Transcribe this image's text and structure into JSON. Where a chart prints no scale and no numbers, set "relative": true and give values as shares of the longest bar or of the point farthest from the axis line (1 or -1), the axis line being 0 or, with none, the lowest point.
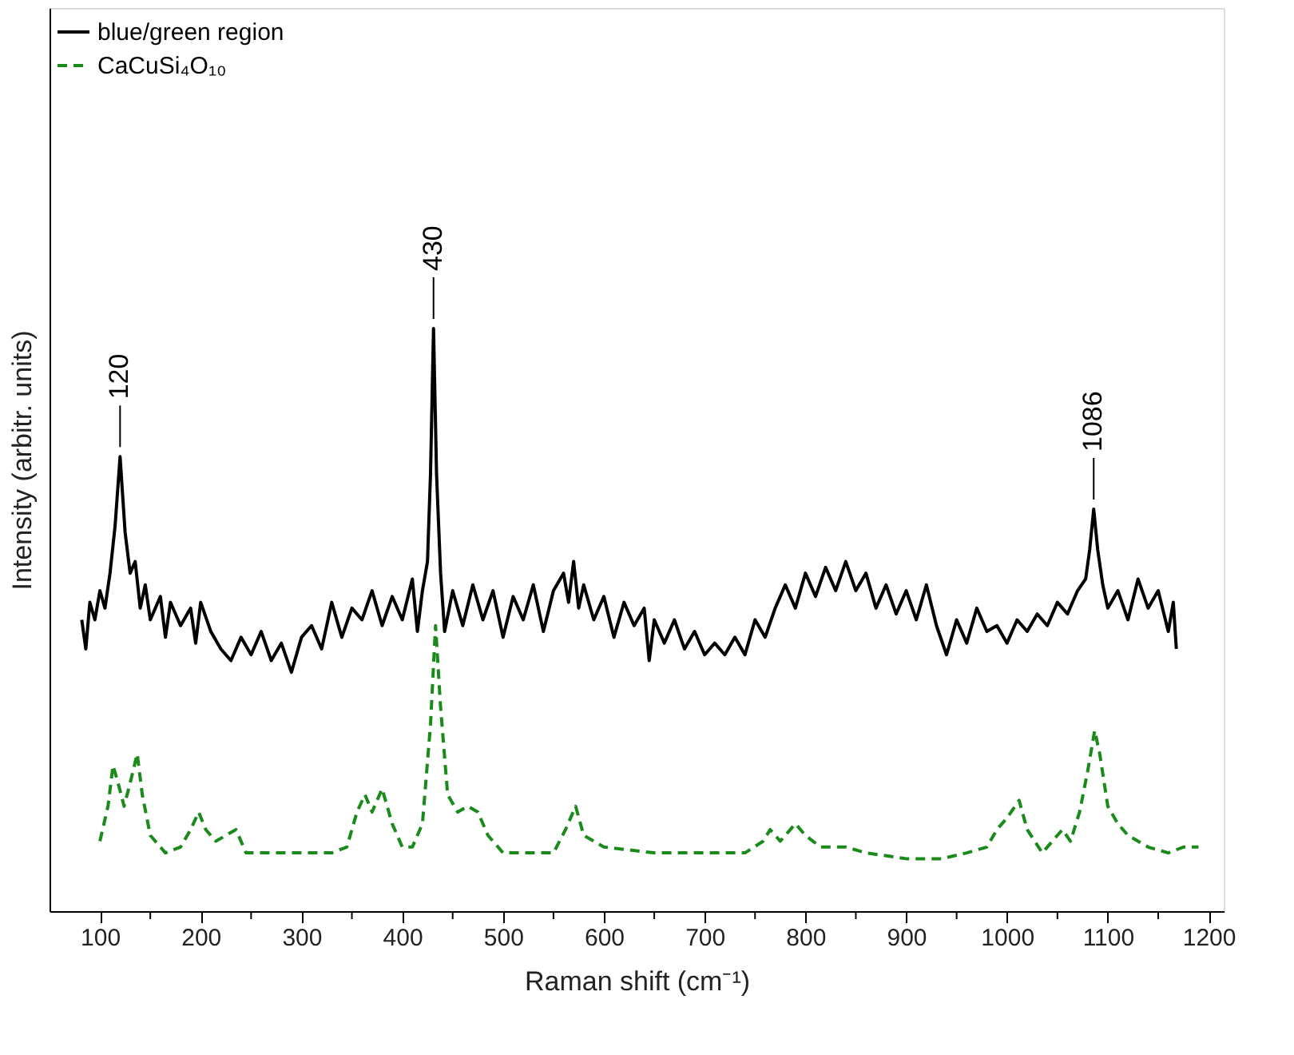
{
  "chart_data": {
    "type": "line",
    "relative": true,
    "xlabel": "Raman shift (cm⁻¹)",
    "ylabel": "Intensity (arbitr. units)",
    "legend": "top left",
    "xlim": [
      50,
      1215
    ],
    "xticks": [
      100,
      {
        "value": 150,
        "label": null
      },
      200,
      {
        "value": 250,
        "label": null
      },
      300,
      {
        "value": 350,
        "label": null
      },
      400,
      {
        "value": 450,
        "label": null
      },
      500,
      {
        "value": 550,
        "label": null
      },
      600,
      {
        "value": 650,
        "label": null
      },
      700,
      {
        "value": 750,
        "label": null
      },
      800,
      {
        "value": 850,
        "label": null
      },
      900,
      {
        "value": 950,
        "label": null
      },
      1000,
      {
        "value": 1050,
        "label": null
      },
      1100,
      {
        "value": 1150,
        "label": null
      },
      1200
    ],
    "annotations": [
      {
        "text": "120",
        "x": 120,
        "y": 0.78
      },
      {
        "text": "430",
        "x": 431,
        "y": 1.0
      },
      {
        "text": "1086",
        "x": 1086,
        "y": 0.69
      }
    ],
    "series": [
      {
        "name": "blue/green region",
        "color": "#000000",
        "line_style": "solid",
        "x": [
          82,
          86,
          90,
          95,
          100,
          105,
          110,
          115,
          120,
          125,
          130,
          135,
          140,
          145,
          150,
          160,
          165,
          170,
          180,
          190,
          195,
          200,
          210,
          220,
          230,
          240,
          250,
          260,
          270,
          280,
          290,
          300,
          310,
          320,
          330,
          340,
          350,
          360,
          370,
          380,
          390,
          400,
          410,
          415,
          420,
          425,
          428,
          431,
          434,
          438,
          442,
          450,
          460,
          470,
          480,
          490,
          500,
          510,
          520,
          530,
          540,
          550,
          560,
          565,
          570,
          575,
          580,
          590,
          600,
          610,
          620,
          630,
          640,
          645,
          650,
          660,
          670,
          680,
          690,
          700,
          710,
          720,
          730,
          740,
          750,
          760,
          770,
          780,
          790,
          800,
          810,
          820,
          830,
          840,
          850,
          860,
          870,
          880,
          890,
          900,
          910,
          920,
          930,
          940,
          950,
          960,
          970,
          980,
          990,
          1000,
          1010,
          1020,
          1030,
          1040,
          1050,
          1060,
          1070,
          1078,
          1082,
          1086,
          1090,
          1095,
          1100,
          1110,
          1120,
          1130,
          1140,
          1150,
          1160,
          1165,
          1168
        ],
        "values": [
          0.5,
          0.45,
          0.53,
          0.5,
          0.55,
          0.52,
          0.58,
          0.66,
          0.78,
          0.65,
          0.58,
          0.6,
          0.52,
          0.56,
          0.5,
          0.54,
          0.47,
          0.53,
          0.49,
          0.52,
          0.46,
          0.53,
          0.48,
          0.45,
          0.43,
          0.47,
          0.44,
          0.48,
          0.43,
          0.46,
          0.41,
          0.47,
          0.49,
          0.45,
          0.53,
          0.47,
          0.52,
          0.5,
          0.55,
          0.49,
          0.54,
          0.5,
          0.57,
          0.48,
          0.55,
          0.6,
          0.75,
          1.0,
          0.75,
          0.58,
          0.48,
          0.55,
          0.49,
          0.56,
          0.5,
          0.55,
          0.47,
          0.54,
          0.5,
          0.56,
          0.48,
          0.55,
          0.58,
          0.53,
          0.6,
          0.52,
          0.56,
          0.5,
          0.54,
          0.47,
          0.53,
          0.49,
          0.52,
          0.43,
          0.5,
          0.46,
          0.5,
          0.45,
          0.48,
          0.44,
          0.46,
          0.44,
          0.47,
          0.44,
          0.5,
          0.47,
          0.52,
          0.56,
          0.52,
          0.58,
          0.54,
          0.59,
          0.55,
          0.6,
          0.55,
          0.58,
          0.52,
          0.56,
          0.51,
          0.55,
          0.5,
          0.56,
          0.49,
          0.44,
          0.5,
          0.46,
          0.52,
          0.48,
          0.49,
          0.46,
          0.5,
          0.48,
          0.51,
          0.49,
          0.53,
          0.51,
          0.55,
          0.57,
          0.62,
          0.69,
          0.62,
          0.56,
          0.52,
          0.55,
          0.5,
          0.57,
          0.52,
          0.55,
          0.48,
          0.53,
          0.45
        ]
      },
      {
        "name": "CaCuSi₄O₁₀",
        "color": "#1a8a1a",
        "line_style": "dashed",
        "x": [
          100,
          108,
          113,
          118,
          124,
          130,
          137,
          142,
          150,
          165,
          180,
          190,
          198,
          205,
          215,
          225,
          235,
          245,
          270,
          300,
          330,
          345,
          355,
          363,
          370,
          380,
          390,
          400,
          410,
          420,
          428,
          433,
          438,
          445,
          455,
          465,
          475,
          485,
          500,
          530,
          550,
          562,
          572,
          580,
          590,
          600,
          650,
          700,
          740,
          758,
          765,
          775,
          790,
          800,
          815,
          840,
          860,
          900,
          935,
          960,
          980,
          990,
          1000,
          1012,
          1020,
          1035,
          1045,
          1055,
          1063,
          1072,
          1080,
          1087,
          1092,
          1100,
          1110,
          1120,
          1130,
          1140,
          1160,
          1175,
          1190
        ],
        "values": [
          0.12,
          0.18,
          0.25,
          0.22,
          0.18,
          0.22,
          0.27,
          0.2,
          0.13,
          0.1,
          0.11,
          0.14,
          0.17,
          0.14,
          0.12,
          0.13,
          0.14,
          0.1,
          0.1,
          0.1,
          0.1,
          0.11,
          0.17,
          0.2,
          0.17,
          0.21,
          0.15,
          0.11,
          0.11,
          0.15,
          0.32,
          0.49,
          0.35,
          0.2,
          0.17,
          0.18,
          0.17,
          0.13,
          0.1,
          0.1,
          0.1,
          0.14,
          0.18,
          0.13,
          0.12,
          0.11,
          0.1,
          0.1,
          0.1,
          0.12,
          0.14,
          0.12,
          0.15,
          0.13,
          0.11,
          0.11,
          0.1,
          0.09,
          0.09,
          0.1,
          0.11,
          0.14,
          0.16,
          0.19,
          0.14,
          0.1,
          0.12,
          0.14,
          0.12,
          0.17,
          0.24,
          0.31,
          0.27,
          0.18,
          0.15,
          0.13,
          0.12,
          0.11,
          0.1,
          0.11,
          0.11
        ]
      }
    ]
  }
}
